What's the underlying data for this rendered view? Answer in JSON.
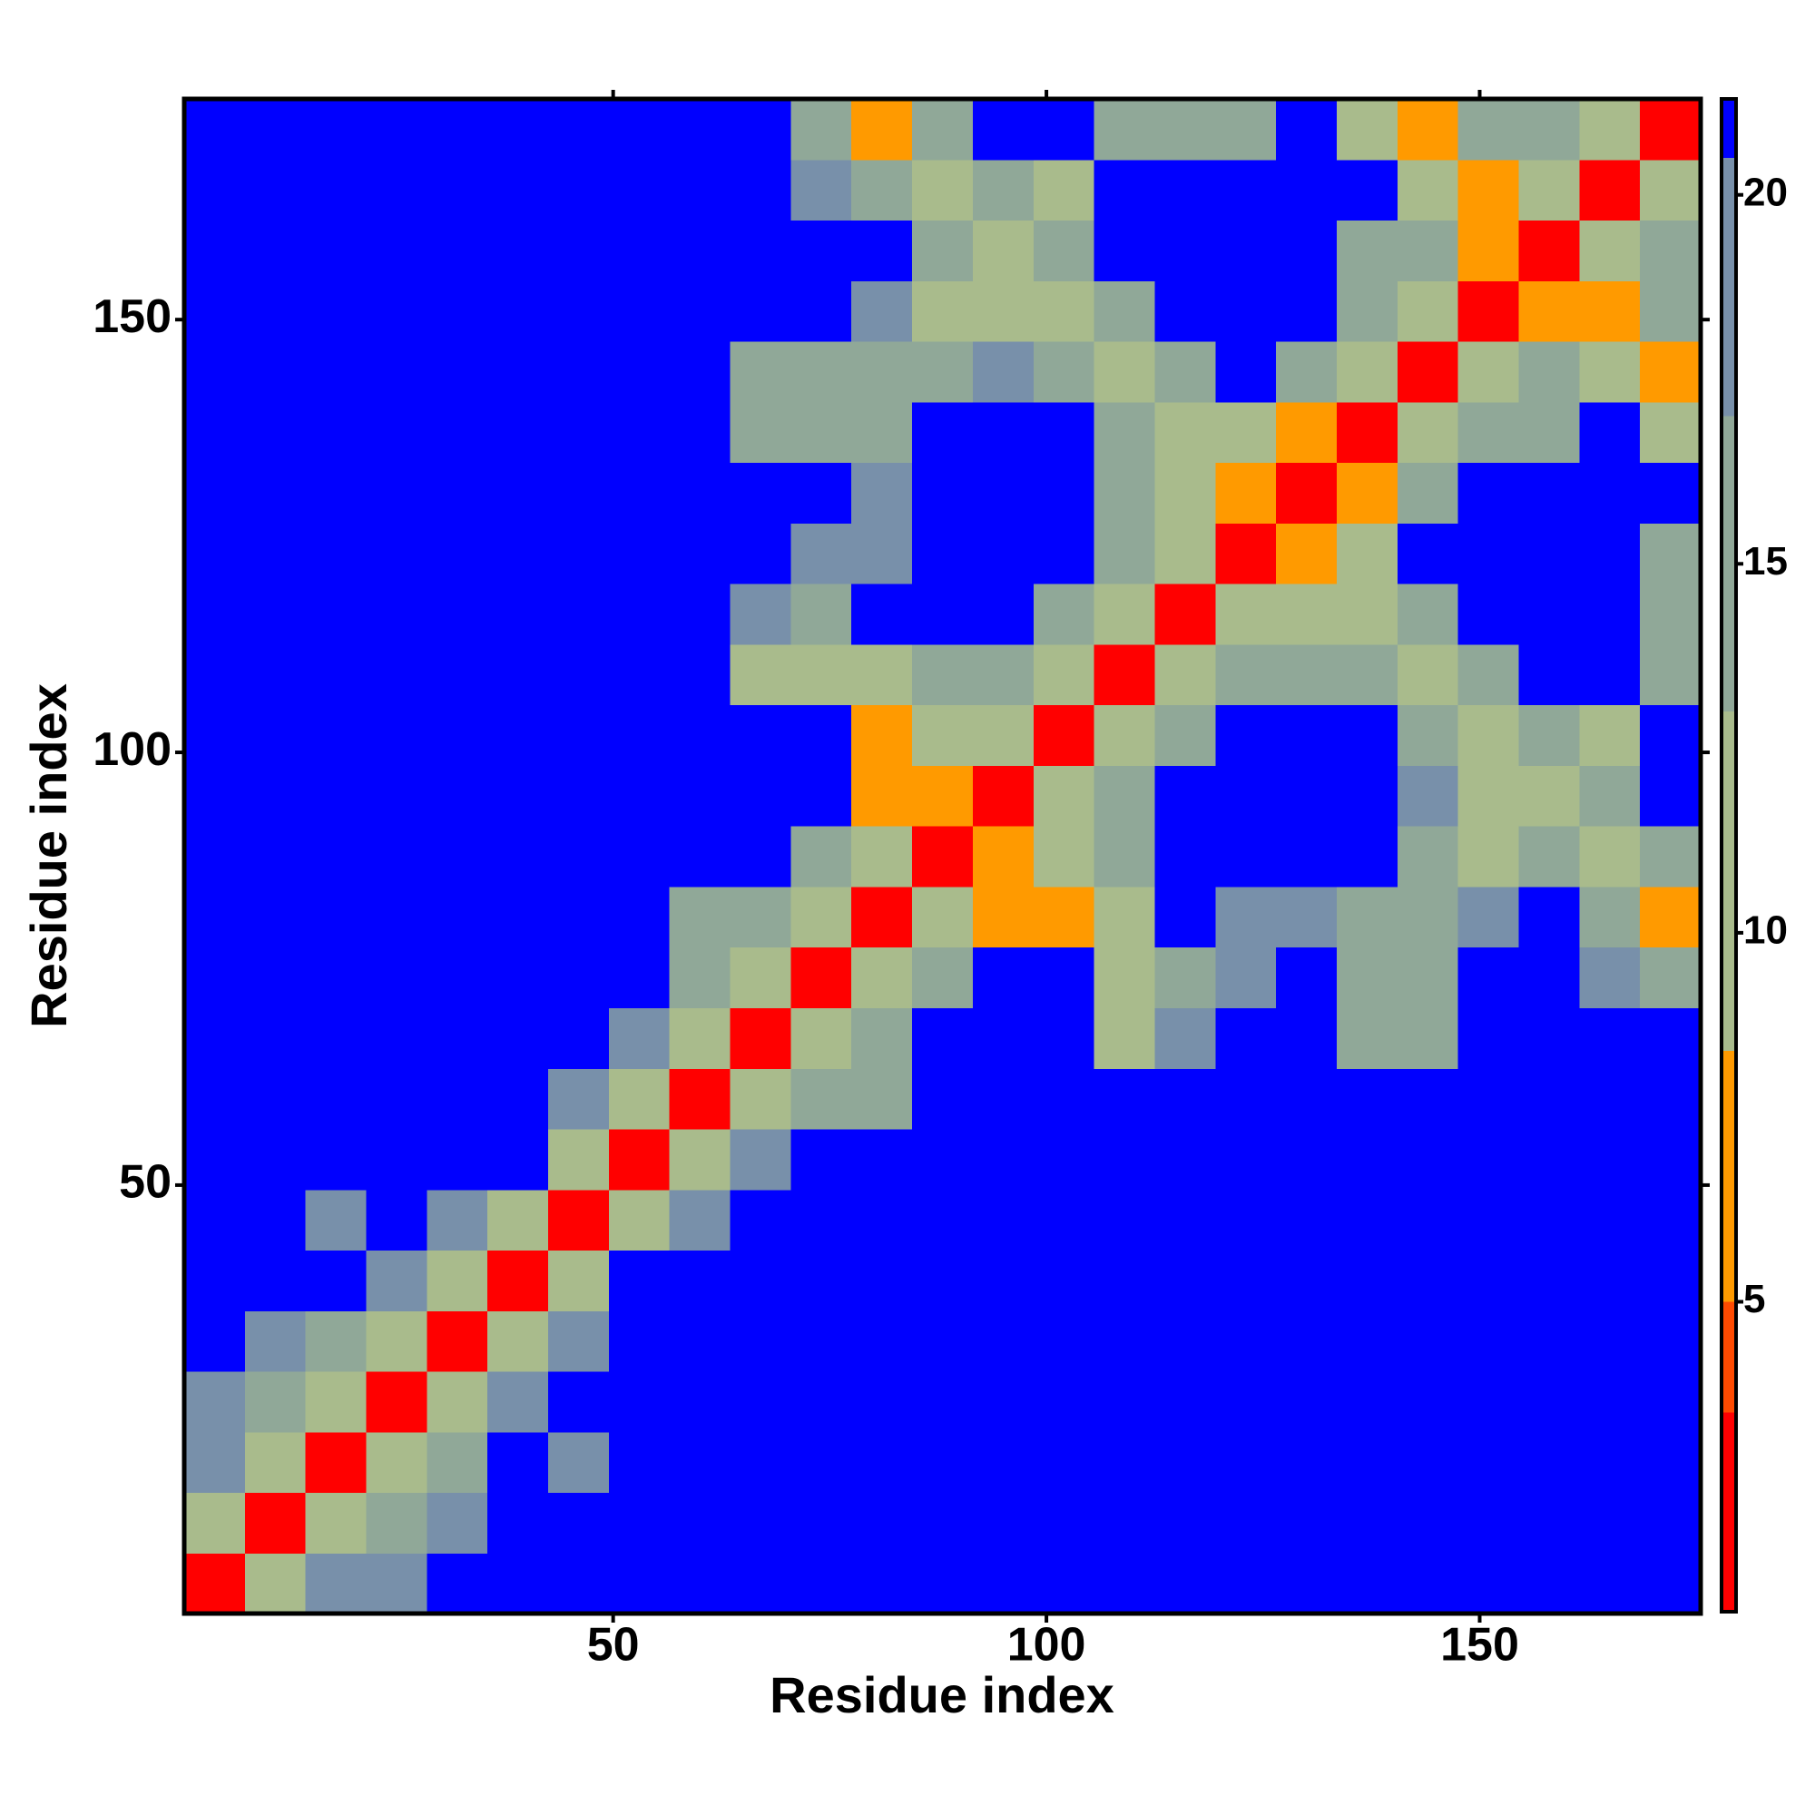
{
  "chart_data": {
    "type": "heatmap",
    "x_label": "Residue index",
    "y_label": "Residue index",
    "xlim": [
      0.5,
      175.5
    ],
    "ylim": [
      0.5,
      175.5
    ],
    "xticks": [
      50,
      100,
      150
    ],
    "yticks": [
      50,
      100,
      150
    ],
    "clim": [
      0.8,
      21.3
    ],
    "cticks": [
      5,
      10,
      15,
      20
    ],
    "colorscale": [
      {
        "value": 0.8,
        "color": "#ff0000"
      },
      {
        "value": 3.5,
        "color": "#ff4a00"
      },
      {
        "value": 5,
        "color": "#ff9a00"
      },
      {
        "value": 8.4,
        "color": "#a9bb8c"
      },
      {
        "value": 13,
        "color": "#90a898"
      },
      {
        "value": 17,
        "color": "#7890aa"
      },
      {
        "value": 20.5,
        "color": "#0000ff"
      }
    ],
    "x": [
      4,
      11,
      18,
      25,
      32,
      39,
      46,
      53,
      60,
      67,
      74,
      81,
      88,
      95,
      102,
      109,
      116,
      123,
      130,
      137,
      144,
      151,
      158,
      165,
      172
    ],
    "y": [
      4,
      11,
      18,
      25,
      32,
      39,
      46,
      53,
      60,
      67,
      74,
      81,
      88,
      95,
      102,
      109,
      116,
      123,
      130,
      137,
      144,
      151,
      158,
      165,
      172
    ],
    "z": [
      [
        2.5,
        12,
        17,
        19,
        21.3,
        21.3,
        21.3,
        21.3,
        21.3,
        21.3,
        21.3,
        21.3,
        21.3,
        21.3,
        21.3,
        21.3,
        21.3,
        21.3,
        21.3,
        21.3,
        21.3,
        21.3,
        21.3,
        21.3,
        21.3
      ],
      [
        12,
        2.5,
        10,
        13,
        17,
        21.3,
        21.3,
        21.3,
        21.3,
        21.3,
        21.3,
        21.3,
        21.3,
        21.3,
        21.3,
        21.3,
        21.3,
        21.3,
        21.3,
        21.3,
        21.3,
        21.3,
        21.3,
        21.3,
        21.3
      ],
      [
        17,
        10,
        2.5,
        9,
        15,
        21.3,
        19,
        21.3,
        21.3,
        21.3,
        21.3,
        21.3,
        21.3,
        21.3,
        21.3,
        21.3,
        21.3,
        21.3,
        21.3,
        21.3,
        21.3,
        21.3,
        21.3,
        21.3,
        21.3
      ],
      [
        19,
        13,
        9,
        2.5,
        11,
        18,
        21.3,
        21.3,
        21.3,
        21.3,
        21.3,
        21.3,
        21.3,
        21.3,
        21.3,
        21.3,
        21.3,
        21.3,
        21.3,
        21.3,
        21.3,
        21.3,
        21.3,
        21.3,
        21.3
      ],
      [
        21.3,
        17,
        15,
        11,
        2.5,
        12,
        17,
        21.3,
        21.3,
        21.3,
        21.3,
        21.3,
        21.3,
        21.3,
        21.3,
        21.3,
        21.3,
        21.3,
        21.3,
        21.3,
        21.3,
        21.3,
        21.3,
        21.3,
        21.3
      ],
      [
        21.3,
        21.3,
        21.3,
        18,
        12,
        2.5,
        11,
        21.3,
        21.3,
        21.3,
        21.3,
        21.3,
        21.3,
        21.3,
        21.3,
        21.3,
        21.3,
        21.3,
        21.3,
        21.3,
        21.3,
        21.3,
        21.3,
        21.3,
        21.3
      ],
      [
        21.3,
        21.3,
        19,
        21.3,
        17,
        11,
        2.5,
        10,
        18,
        21.3,
        21.3,
        21.3,
        21.3,
        21.3,
        21.3,
        21.3,
        21.3,
        21.3,
        21.3,
        21.3,
        21.3,
        21.3,
        21.3,
        21.3,
        21.3
      ],
      [
        21.3,
        21.3,
        21.3,
        21.3,
        21.3,
        21.3,
        10,
        2.5,
        11,
        19,
        21.3,
        21.3,
        21.3,
        21.3,
        21.3,
        21.3,
        21.3,
        21.3,
        21.3,
        21.3,
        21.3,
        21.3,
        21.3,
        21.3,
        21.3
      ],
      [
        21.3,
        21.3,
        21.3,
        21.3,
        21.3,
        21.3,
        18,
        11,
        2.5,
        10,
        15,
        15,
        21.3,
        21.3,
        21.3,
        21.3,
        21.3,
        21.3,
        21.3,
        21.3,
        21.3,
        21.3,
        21.3,
        21.3,
        21.3
      ],
      [
        21.3,
        21.3,
        21.3,
        21.3,
        21.3,
        21.3,
        21.3,
        19,
        10,
        2.5,
        9,
        13,
        21.3,
        21.3,
        21.3,
        12,
        18,
        21.3,
        21.3,
        16,
        15,
        21.3,
        21.3,
        21.3,
        21.3
      ],
      [
        21.3,
        21.3,
        21.3,
        21.3,
        21.3,
        21.3,
        21.3,
        21.3,
        15,
        9,
        2.5,
        9,
        14,
        21.3,
        21.3,
        12,
        16,
        17,
        21.3,
        15,
        14,
        21.3,
        21.3,
        17,
        14
      ],
      [
        21.3,
        21.3,
        21.3,
        21.3,
        21.3,
        21.3,
        21.3,
        21.3,
        15,
        13,
        9,
        2.5,
        10,
        8,
        8,
        9,
        21.3,
        18,
        18,
        16,
        13,
        17,
        21.3,
        15,
        8
      ],
      [
        21.3,
        21.3,
        21.3,
        21.3,
        21.3,
        21.3,
        21.3,
        21.3,
        21.3,
        21.3,
        14,
        10,
        2.5,
        8,
        10,
        14,
        21.3,
        21.3,
        21.3,
        21.3,
        14,
        11,
        15,
        11,
        15
      ],
      [
        21.3,
        21.3,
        21.3,
        21.3,
        21.3,
        21.3,
        21.3,
        21.3,
        21.3,
        21.3,
        21.3,
        8,
        8,
        2.5,
        10,
        13,
        21.3,
        21.3,
        21.3,
        21.3,
        18,
        10,
        9,
        15,
        21.3
      ],
      [
        21.3,
        21.3,
        21.3,
        21.3,
        21.3,
        21.3,
        21.3,
        21.3,
        21.3,
        21.3,
        21.3,
        8,
        10,
        10,
        2.5,
        10,
        14,
        21.3,
        21.3,
        21.3,
        15,
        11,
        15,
        12,
        21.3
      ],
      [
        21.3,
        21.3,
        21.3,
        21.3,
        21.3,
        21.3,
        21.3,
        21.3,
        21.3,
        12,
        12,
        9,
        14,
        13,
        10,
        2.5,
        10,
        13,
        15,
        15,
        10,
        15,
        21.3,
        21.3,
        13
      ],
      [
        21.3,
        21.3,
        21.3,
        21.3,
        21.3,
        21.3,
        21.3,
        21.3,
        21.3,
        18,
        16,
        21.3,
        21.3,
        21.3,
        14,
        10,
        2.5,
        9,
        11,
        12,
        15,
        21.3,
        21.3,
        21.3,
        15
      ],
      [
        21.3,
        21.3,
        21.3,
        21.3,
        21.3,
        21.3,
        21.3,
        21.3,
        21.3,
        21.3,
        17,
        18,
        21.3,
        21.3,
        21.3,
        13,
        9,
        2.5,
        7,
        11,
        21.3,
        21.3,
        21.3,
        21.3,
        16
      ],
      [
        21.3,
        21.3,
        21.3,
        21.3,
        21.3,
        21.3,
        21.3,
        21.3,
        21.3,
        21.3,
        21.3,
        18,
        21.3,
        21.3,
        21.3,
        15,
        11,
        7,
        2.5,
        8,
        14,
        21.3,
        21.3,
        21.3,
        21.3
      ],
      [
        21.3,
        21.3,
        21.3,
        21.3,
        21.3,
        21.3,
        21.3,
        21.3,
        21.3,
        16,
        15,
        16,
        21.3,
        21.3,
        21.3,
        15,
        12,
        11,
        8,
        2.5,
        10,
        16,
        16,
        21.3,
        9
      ],
      [
        21.3,
        21.3,
        21.3,
        21.3,
        21.3,
        21.3,
        21.3,
        21.3,
        21.3,
        15,
        14,
        13,
        14,
        18,
        15,
        10,
        15,
        21.3,
        14,
        10,
        2.5,
        11,
        15,
        12,
        7
      ],
      [
        21.3,
        21.3,
        21.3,
        21.3,
        21.3,
        21.3,
        21.3,
        21.3,
        21.3,
        21.3,
        21.3,
        17,
        11,
        10,
        11,
        15,
        21.3,
        21.3,
        21.3,
        16,
        11,
        2.5,
        6,
        7,
        15
      ],
      [
        21.3,
        21.3,
        21.3,
        21.3,
        21.3,
        21.3,
        21.3,
        21.3,
        21.3,
        21.3,
        21.3,
        21.3,
        15,
        9,
        15,
        21.3,
        21.3,
        21.3,
        21.3,
        16,
        15,
        6,
        2.5,
        9,
        13
      ],
      [
        21.3,
        21.3,
        21.3,
        21.3,
        21.3,
        21.3,
        21.3,
        21.3,
        21.3,
        21.3,
        17,
        15,
        11,
        15,
        12,
        21.3,
        21.3,
        21.3,
        21.3,
        21.3,
        12,
        7,
        9,
        2.5,
        10
      ],
      [
        21.3,
        21.3,
        21.3,
        21.3,
        21.3,
        21.3,
        21.3,
        21.3,
        21.3,
        21.3,
        14,
        8,
        15,
        21.3,
        21.3,
        13,
        15,
        16,
        21.3,
        9,
        7,
        15,
        13,
        10,
        2.5
      ]
    ]
  }
}
